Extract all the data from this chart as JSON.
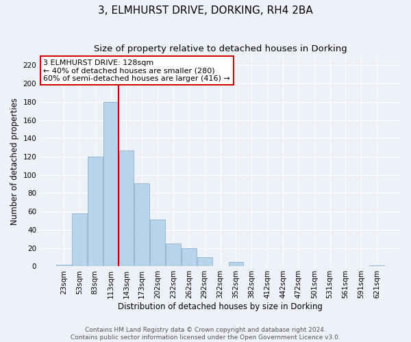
{
  "title": "3, ELMHURST DRIVE, DORKING, RH4 2BA",
  "subtitle": "Size of property relative to detached houses in Dorking",
  "xlabel": "Distribution of detached houses by size in Dorking",
  "ylabel": "Number of detached properties",
  "bar_labels": [
    "23sqm",
    "53sqm",
    "83sqm",
    "113sqm",
    "143sqm",
    "173sqm",
    "202sqm",
    "232sqm",
    "262sqm",
    "292sqm",
    "322sqm",
    "352sqm",
    "382sqm",
    "412sqm",
    "442sqm",
    "472sqm",
    "501sqm",
    "531sqm",
    "561sqm",
    "591sqm",
    "621sqm"
  ],
  "bar_values": [
    2,
    58,
    120,
    180,
    127,
    91,
    51,
    25,
    20,
    10,
    0,
    5,
    0,
    0,
    0,
    0,
    0,
    0,
    0,
    0,
    1
  ],
  "bar_color": "#b8d4ea",
  "bar_edge_color": "#8ab4d4",
  "highlight_bar_index": 3,
  "highlight_line_color": "#cc0000",
  "ylim": [
    0,
    230
  ],
  "yticks": [
    0,
    20,
    40,
    60,
    80,
    100,
    120,
    140,
    160,
    180,
    200,
    220
  ],
  "annotation_title": "3 ELMHURST DRIVE: 128sqm",
  "annotation_line1": "← 40% of detached houses are smaller (280)",
  "annotation_line2": "60% of semi-detached houses are larger (416) →",
  "footer1": "Contains HM Land Registry data © Crown copyright and database right 2024.",
  "footer2": "Contains public sector information licensed under the Open Government Licence v3.0.",
  "bg_color": "#eef2f8",
  "grid_color": "#ffffff",
  "title_fontsize": 11,
  "subtitle_fontsize": 9.5,
  "axis_label_fontsize": 8.5,
  "tick_fontsize": 7.5,
  "footer_fontsize": 6.5
}
